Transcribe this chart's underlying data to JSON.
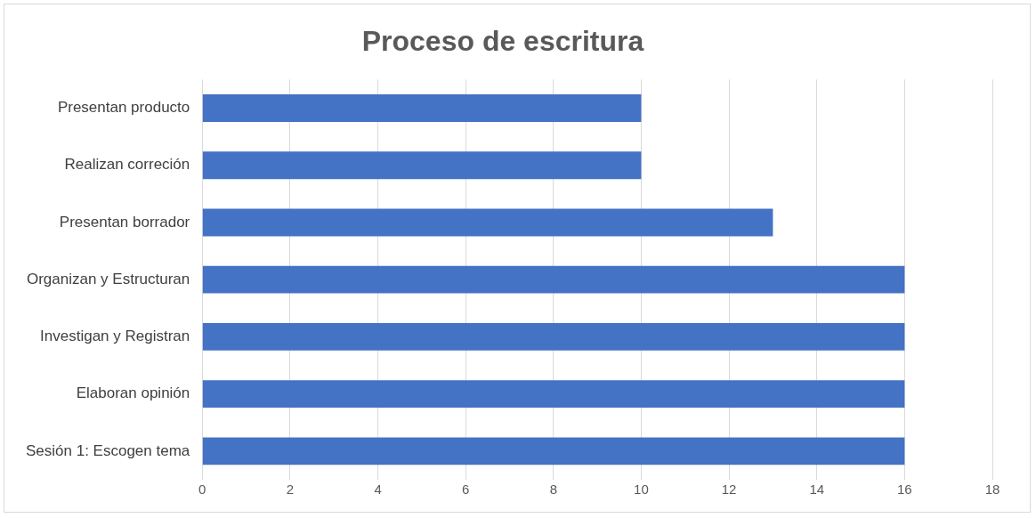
{
  "chart_data": {
    "type": "bar",
    "orientation": "horizontal",
    "title": "Proceso de escritura",
    "categories": [
      "Presentan producto",
      "Realizan correción",
      "Presentan borrador",
      "Organizan y Estructuran",
      "Investigan y Registran",
      "Elaboran opinión",
      "Sesión 1: Escogen tema"
    ],
    "values": [
      10,
      10,
      13,
      16,
      16,
      16,
      16
    ],
    "color": "#4472c4",
    "xlim": [
      0,
      18
    ],
    "xticks": [
      0,
      2,
      4,
      6,
      8,
      10,
      12,
      14,
      16,
      18
    ],
    "grid": "x",
    "legend": false
  }
}
